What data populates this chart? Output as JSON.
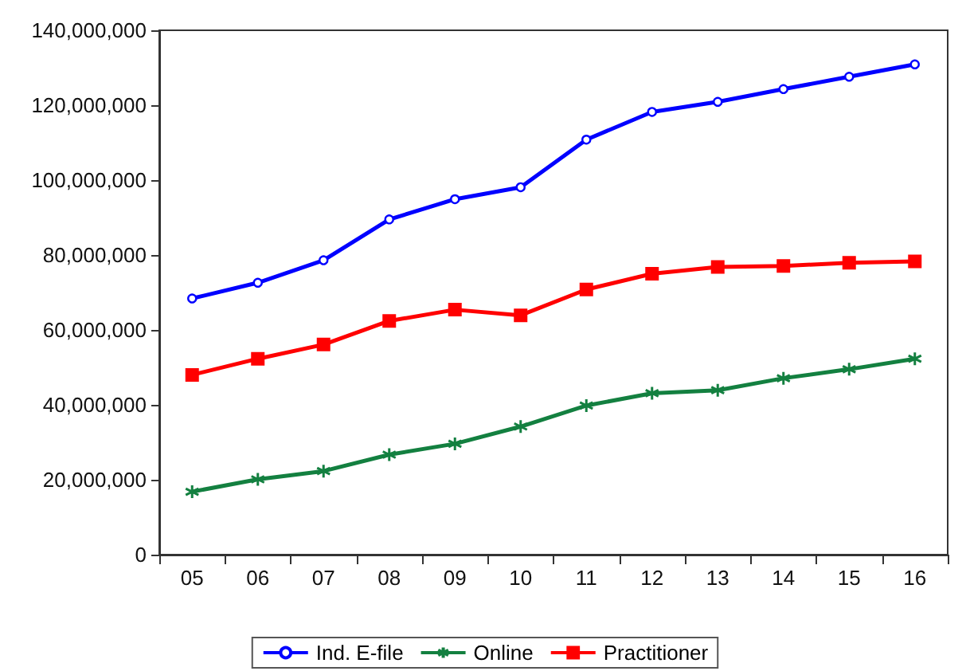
{
  "chart_data": {
    "type": "line",
    "categories": [
      "05",
      "06",
      "07",
      "08",
      "09",
      "10",
      "11",
      "12",
      "13",
      "14",
      "15",
      "16"
    ],
    "series": [
      {
        "name": "Ind. E-file",
        "color": "#0000ff",
        "marker": "circle",
        "values": [
          68400000,
          72600000,
          78600000,
          89500000,
          94900000,
          98100000,
          110800000,
          118200000,
          120900000,
          124300000,
          127600000,
          130900000
        ]
      },
      {
        "name": "Online",
        "color": "#138040",
        "marker": "cross",
        "values": [
          16800000,
          20100000,
          22300000,
          26700000,
          29600000,
          34200000,
          39800000,
          43100000,
          43900000,
          47100000,
          49500000,
          52300000
        ]
      },
      {
        "name": "Practitioner",
        "color": "#ff0000",
        "marker": "square",
        "values": [
          48000000,
          52300000,
          56100000,
          62400000,
          65400000,
          63900000,
          70800000,
          75000000,
          76800000,
          77100000,
          77900000,
          78300000
        ]
      }
    ],
    "ylim": [
      0,
      140000000
    ],
    "yticks": [
      {
        "value": 0,
        "label": "0"
      },
      {
        "value": 20000000,
        "label": "20,000,000"
      },
      {
        "value": 40000000,
        "label": "40,000,000"
      },
      {
        "value": 60000000,
        "label": "60,000,000"
      },
      {
        "value": 80000000,
        "label": "80,000,000"
      },
      {
        "value": 100000000,
        "label": "100,000,000"
      },
      {
        "value": 120000000,
        "label": "120,000,000"
      },
      {
        "value": 140000000,
        "label": "140,000,000"
      }
    ],
    "grid": false,
    "legend": "bottom",
    "line_style": "solid"
  }
}
